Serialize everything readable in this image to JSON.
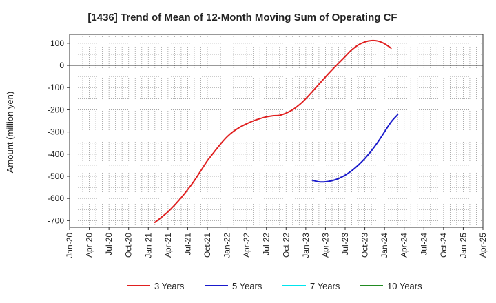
{
  "chart_data": {
    "type": "line",
    "title": "[1436]  Trend of Mean of 12-Month Moving Sum of Operating CF",
    "ylabel": "Amount (million yen)",
    "xlabel": "",
    "ylim": [
      -730,
      140
    ],
    "yticks": [
      100,
      0,
      -100,
      -200,
      -300,
      -400,
      -500,
      -600,
      -700
    ],
    "xticks": [
      "Jan-20",
      "Apr-20",
      "Jul-20",
      "Oct-20",
      "Jan-21",
      "Apr-21",
      "Jul-21",
      "Oct-21",
      "Jan-22",
      "Apr-22",
      "Jul-22",
      "Oct-22",
      "Jan-23",
      "Apr-23",
      "Jul-23",
      "Oct-23",
      "Jan-24",
      "Apr-24",
      "Jul-24",
      "Oct-24",
      "Jan-25",
      "Apr-25"
    ],
    "grid": true,
    "legend_position": "bottom",
    "series": [
      {
        "name": "3 Years",
        "color": "#e02020",
        "start": "Feb-21",
        "values": [
          -708,
          -685,
          -660,
          -630,
          -597,
          -560,
          -520,
          -475,
          -430,
          -392,
          -355,
          -322,
          -297,
          -278,
          -263,
          -250,
          -240,
          -232,
          -227,
          -225,
          -215,
          -200,
          -178,
          -150,
          -118,
          -85,
          -52,
          -20,
          10,
          40,
          70,
          92,
          106,
          112,
          110,
          98,
          78
        ]
      },
      {
        "name": "5 Years",
        "color": "#1a1acc",
        "start": "Feb-23",
        "values": [
          -518,
          -525,
          -525,
          -520,
          -510,
          -495,
          -475,
          -450,
          -420,
          -385,
          -345,
          -300,
          -255,
          -222
        ]
      },
      {
        "name": "7 Years",
        "color": "#00e5ee",
        "start": "",
        "values": []
      },
      {
        "name": "10 Years",
        "color": "#228b22",
        "start": "",
        "values": []
      }
    ]
  }
}
